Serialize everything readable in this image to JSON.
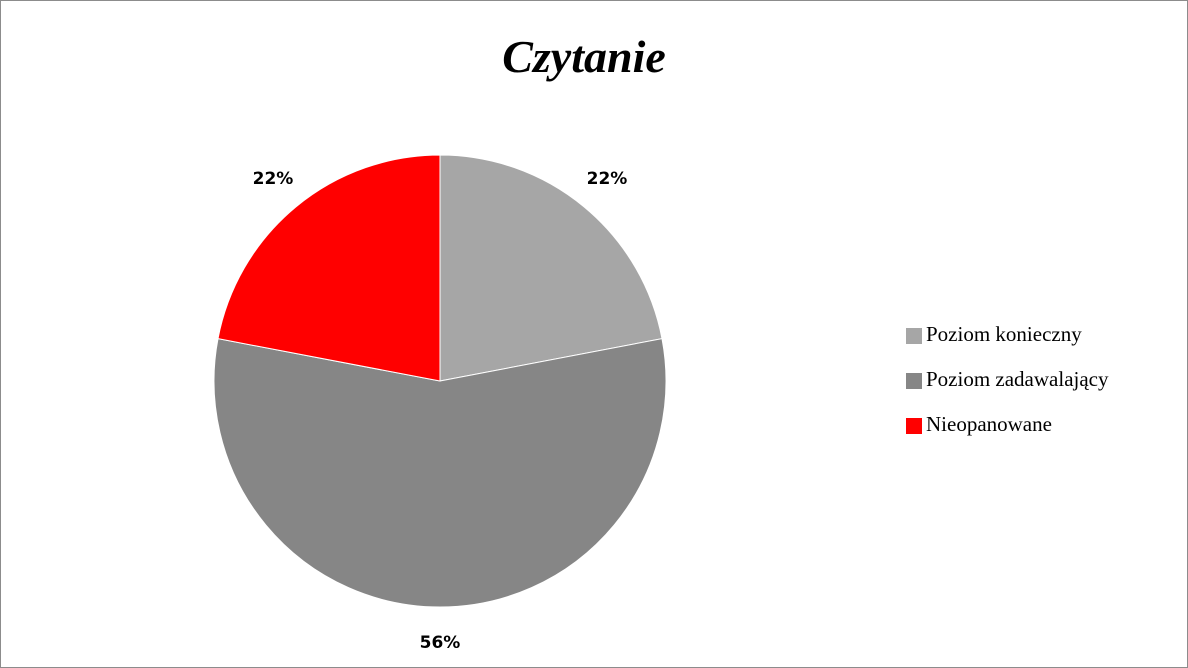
{
  "chart_data": {
    "type": "pie",
    "title": "Czytanie",
    "categories": [
      "Poziom konieczny",
      "Poziom zadawalający",
      "Nieopanowane"
    ],
    "values": [
      22,
      56,
      22
    ],
    "value_labels": [
      "22%",
      "56%",
      "22%"
    ],
    "colors": [
      "#a6a6a6",
      "#868686",
      "#ff0000"
    ],
    "legend": "right"
  }
}
